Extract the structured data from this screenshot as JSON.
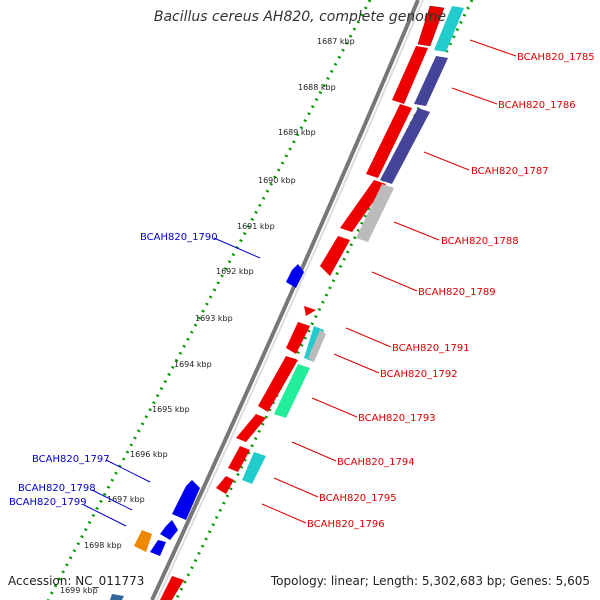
{
  "title": "Bacillus cereus AH820, complete genome",
  "footer": {
    "accession": "Accession: NC_011773",
    "summary": "Topology: linear; Length: 5,302,683 bp; Genes: 5,605"
  },
  "colors": {
    "forward_label": "#dd0000",
    "reverse_label": "#0000cc",
    "red_gene": "#ee0000",
    "blue_gene": "#0000ee",
    "cyan_gene": "#22cccc",
    "purple_gene": "#444499",
    "gray_gene": "#bbbbbb",
    "green_gene": "#22ee99",
    "orange_gene": "#ee8800",
    "dotted_track": "#009900",
    "backbone": "#777777"
  },
  "ticks": [
    "1687 kbp",
    "1688 kbp",
    "1689 kbp",
    "1690 kbp",
    "1691 kbp",
    "1692 kbp",
    "1693 kbp",
    "1694 kbp",
    "1695 kbp",
    "1696 kbp",
    "1697 kbp",
    "1698 kbp",
    "1699 kbp"
  ],
  "forward_gene_labels": [
    "BCAH820_1785",
    "BCAH820_1786",
    "BCAH820_1787",
    "BCAH820_1788",
    "BCAH820_1789",
    "BCAH820_1791",
    "BCAH820_1792",
    "BCAH820_1793",
    "BCAH820_1794",
    "BCAH820_1795",
    "BCAH820_1796"
  ],
  "reverse_gene_labels": [
    "BCAH820_1790",
    "BCAH820_1797",
    "BCAH820_1798",
    "BCAH820_1799"
  ]
}
